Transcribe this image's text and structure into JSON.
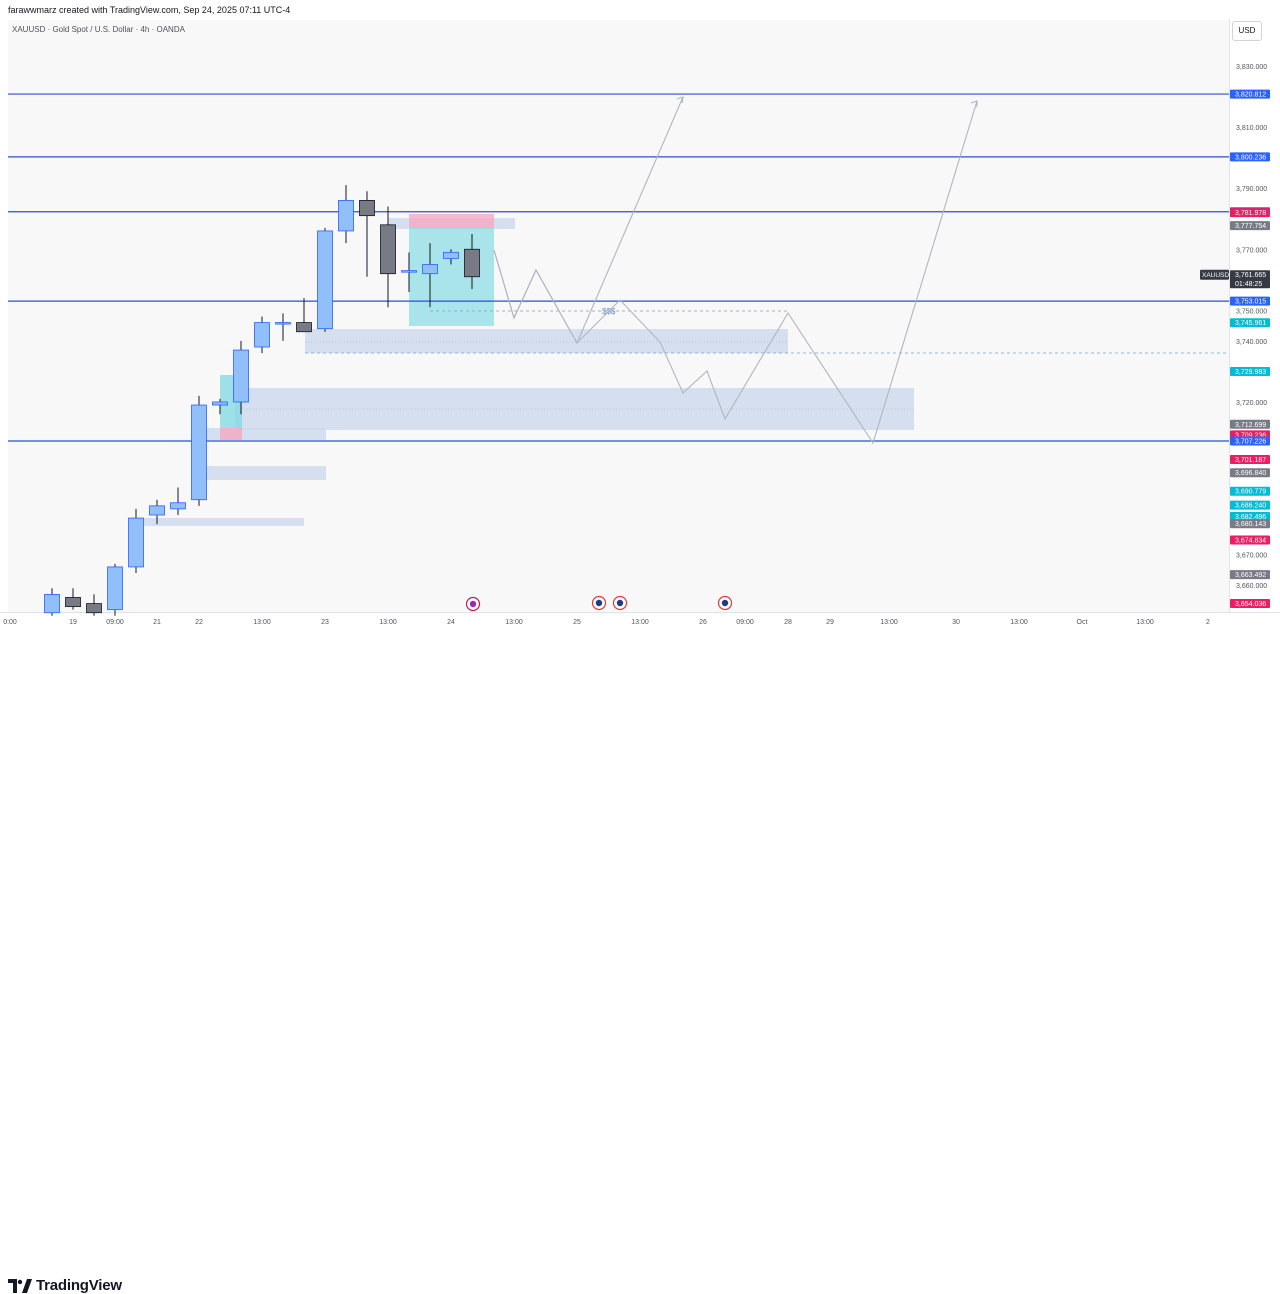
{
  "header": {
    "text": "farawwmarz created with TradingView.com, Sep 24, 2025 07:11 UTC-4"
  },
  "symbol": {
    "text": "XAUUSD · Gold Spot / U.S. Dollar · 4h · OANDA"
  },
  "currency": "USD",
  "footer": {
    "brand": "TradingView"
  },
  "colors": {
    "up_fill": "#90bff9",
    "up_border": "#2962ff",
    "down_fill": "#787b86",
    "down_border": "#131722",
    "hline": "#2a4fd6",
    "zone": "#c9d7ee",
    "projection": "#b2b5be",
    "green_box": "#7fd8e3",
    "red_box": "#f5a9c3",
    "label_blue": "#2962ff",
    "label_red": "#e91e63",
    "label_teal": "#00bcd4",
    "label_gray": "#787b86",
    "label_dark": "#363a45"
  },
  "chart_data": {
    "type": "candlestick",
    "title": "XAUUSD · Gold Spot / U.S. Dollar · 4h · OANDA",
    "ylim": [
      3650,
      3840
    ],
    "y_ticks": [
      "3,830.000",
      "3,810.000",
      "3,790.000",
      "3,770.000",
      "3,750.000",
      "3,740.000",
      "3,720.000",
      "3,670.000",
      "3,660.000"
    ],
    "x_ticks": [
      "0:00",
      "19",
      "09:00",
      "21",
      "22",
      "13:00",
      "23",
      "13:00",
      "24",
      "13:00",
      "25",
      "13:00",
      "26",
      "09:00",
      "28",
      "29",
      "13:00",
      "30",
      "13:00",
      "Oct",
      "13:00",
      "2"
    ],
    "candles": [
      {
        "o": 3651,
        "h": 3659,
        "l": 3650,
        "c": 3657
      },
      {
        "o": 3656,
        "h": 3659,
        "l": 3652,
        "c": 3653
      },
      {
        "o": 3654,
        "h": 3657,
        "l": 3650,
        "c": 3651
      },
      {
        "o": 3652,
        "h": 3667,
        "l": 3650,
        "c": 3666
      },
      {
        "o": 3666,
        "h": 3685,
        "l": 3664,
        "c": 3682
      },
      {
        "o": 3683,
        "h": 3688,
        "l": 3680,
        "c": 3686
      },
      {
        "o": 3685,
        "h": 3692,
        "l": 3683,
        "c": 3687
      },
      {
        "o": 3688,
        "h": 3722,
        "l": 3686,
        "c": 3719
      },
      {
        "o": 3719,
        "h": 3721,
        "l": 3716,
        "c": 3720
      },
      {
        "o": 3720,
        "h": 3740,
        "l": 3716,
        "c": 3737
      },
      {
        "o": 3738,
        "h": 3748,
        "l": 3736,
        "c": 3746
      },
      {
        "o": 3746,
        "h": 3749,
        "l": 3740,
        "c": 3746
      },
      {
        "o": 3746,
        "h": 3754,
        "l": 3743,
        "c": 3743
      },
      {
        "o": 3744,
        "h": 3777,
        "l": 3743,
        "c": 3776
      },
      {
        "o": 3776,
        "h": 3791,
        "l": 3772,
        "c": 3786
      },
      {
        "o": 3786,
        "h": 3789,
        "l": 3761,
        "c": 3781
      },
      {
        "o": 3778,
        "h": 3784,
        "l": 3751,
        "c": 3762
      },
      {
        "o": 3763,
        "h": 3769,
        "l": 3756,
        "c": 3763
      },
      {
        "o": 3762,
        "h": 3772,
        "l": 3751,
        "c": 3765
      },
      {
        "o": 3767,
        "h": 3770,
        "l": 3765,
        "c": 3769
      },
      {
        "o": 3770,
        "h": 3775,
        "l": 3757,
        "c": 3761
      }
    ],
    "horizontal_levels": [
      3820.812,
      3800.236,
      3782.282,
      3753.015,
      3707.226
    ],
    "price_labels": [
      {
        "text": "3,820.812",
        "value": 3820.812,
        "color": "#2962ff"
      },
      {
        "text": "3,800.236",
        "value": 3800.236,
        "color": "#2962ff"
      },
      {
        "text": "3,782.282",
        "value": 3782.282,
        "color": "#2962ff"
      },
      {
        "text": "3,781.978",
        "value": 3781.978,
        "color": "#e91e63"
      },
      {
        "text": "3,777.754",
        "value": 3777.754,
        "color": "#787b86"
      },
      {
        "text": "3,761.665",
        "value": 3761.665,
        "color": "#363a45",
        "sub": "01:48:25"
      },
      {
        "text": "3,753.015",
        "value": 3753.015,
        "color": "#2962ff"
      },
      {
        "text": "3,745.961",
        "value": 3745.961,
        "color": "#00bcd4"
      },
      {
        "text": "3,729.983",
        "value": 3729.983,
        "color": "#00bcd4"
      },
      {
        "text": "3,712.699",
        "value": 3712.699,
        "color": "#787b86"
      },
      {
        "text": "3,709.236",
        "value": 3709.236,
        "color": "#e91e63"
      },
      {
        "text": "3,707.226",
        "value": 3707.226,
        "color": "#2962ff"
      },
      {
        "text": "3,701.187",
        "value": 3701.187,
        "color": "#e91e63"
      },
      {
        "text": "3,696.840",
        "value": 3696.84,
        "color": "#787b86"
      },
      {
        "text": "3,690.779",
        "value": 3690.779,
        "color": "#00bcd4"
      },
      {
        "text": "3,686.240",
        "value": 3686.24,
        "color": "#00bcd4"
      },
      {
        "text": "3,682.496",
        "value": 3682.496,
        "color": "#00bcd4"
      },
      {
        "text": "3,680.143",
        "value": 3680.143,
        "color": "#787b86"
      },
      {
        "text": "3,674.834",
        "value": 3674.834,
        "color": "#e91e63"
      },
      {
        "text": "3,663.492",
        "value": 3663.492,
        "color": "#787b86"
      },
      {
        "text": "3,654.036",
        "value": 3654.036,
        "color": "#e91e63"
      }
    ],
    "symbol_tag": "XAUUSD",
    "annotation": "$$$"
  }
}
